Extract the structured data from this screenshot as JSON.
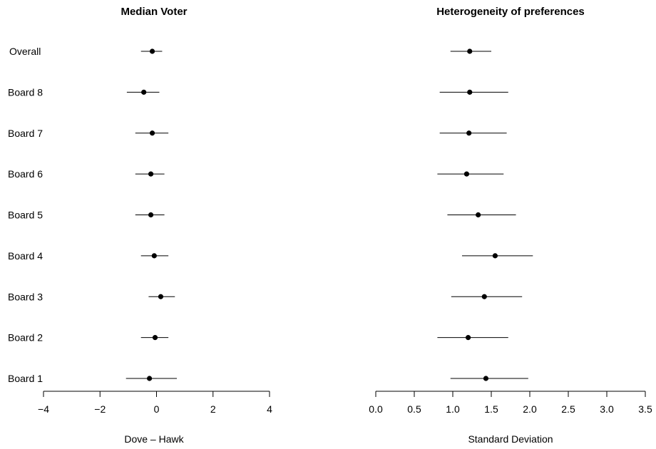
{
  "chart_data": [
    {
      "type": "forest",
      "title": "Median Voter",
      "xlabel": "Dove – Hawk",
      "ylabel": "",
      "xlim": [
        -4,
        4
      ],
      "x_ticks": [
        -4,
        -2,
        0,
        2,
        4
      ],
      "x_tick_labels": [
        "−4",
        "−2",
        "0",
        "2",
        "4"
      ],
      "grid": false,
      "categories": [
        "Overall",
        "Board 8",
        "Board 7",
        "Board 6",
        "Board 5",
        "Board 4",
        "Board 3",
        "Board 2",
        "Board 1"
      ],
      "estimates": [
        -0.15,
        -0.45,
        -0.15,
        -0.2,
        -0.2,
        -0.08,
        0.15,
        -0.05,
        -0.25
      ],
      "lower": [
        -0.55,
        -1.05,
        -0.75,
        -0.75,
        -0.75,
        -0.55,
        -0.28,
        -0.55,
        -1.08
      ],
      "upper": [
        0.2,
        0.1,
        0.42,
        0.28,
        0.28,
        0.42,
        0.65,
        0.42,
        0.72
      ]
    },
    {
      "type": "forest",
      "title": "Heterogeneity of preferences",
      "xlabel": "Standard Deviation",
      "ylabel": "",
      "xlim": [
        0,
        3.5
      ],
      "x_ticks": [
        0,
        0.5,
        1,
        1.5,
        2,
        2.5,
        3,
        3.5
      ],
      "x_tick_labels": [
        "0.0",
        "0.5",
        "1.0",
        "1.5",
        "2.0",
        "2.5",
        "3.0",
        "3.5"
      ],
      "grid": false,
      "categories": [
        "Overall",
        "Board 8",
        "Board 7",
        "Board 6",
        "Board 5",
        "Board 4",
        "Board 3",
        "Board 2",
        "Board 1"
      ],
      "estimates": [
        1.22,
        1.22,
        1.21,
        1.18,
        1.33,
        1.55,
        1.41,
        1.2,
        1.43
      ],
      "lower": [
        0.97,
        0.83,
        0.83,
        0.8,
        0.93,
        1.12,
        0.98,
        0.8,
        0.97
      ],
      "upper": [
        1.5,
        1.72,
        1.7,
        1.66,
        1.82,
        2.04,
        1.9,
        1.72,
        1.98
      ]
    }
  ]
}
